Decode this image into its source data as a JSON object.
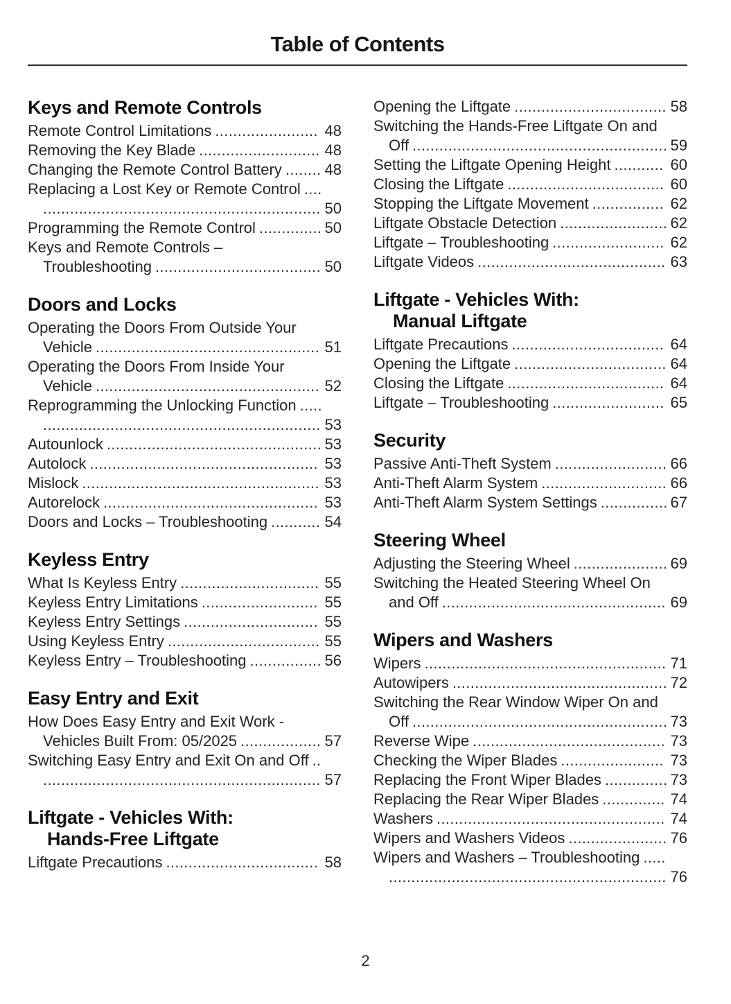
{
  "page": {
    "title": "Table of Contents",
    "page_number": "2"
  },
  "colors": {
    "background": "#ffffff",
    "text": "#242424",
    "heading": "#121212",
    "rule": "#2e2c2d"
  },
  "columns": [
    {
      "blocks": [
        {
          "heading": "Keys and Remote Controls",
          "entries": [
            {
              "label": "Remote Control Limitations",
              "page": "48"
            },
            {
              "label": "Removing the Key Blade",
              "page": "48"
            },
            {
              "label": "Changing the Remote Control Battery",
              "page": "48"
            },
            {
              "label": "Replacing a Lost Key or Remote Control",
              "page": "50"
            },
            {
              "label": "Programming the Remote Control",
              "page": "50"
            },
            {
              "label": "Keys and Remote Controls – Troubleshooting",
              "page": "50"
            }
          ]
        },
        {
          "heading": "Doors and Locks",
          "entries": [
            {
              "label": "Operating the Doors From Outside Your Vehicle",
              "page": "51"
            },
            {
              "label": "Operating the Doors From Inside Your Vehicle",
              "page": "52"
            },
            {
              "label": "Reprogramming the Unlocking Function",
              "page": "53"
            },
            {
              "label": "Autounlock",
              "page": "53"
            },
            {
              "label": "Autolock",
              "page": "53"
            },
            {
              "label": "Mislock",
              "page": "53"
            },
            {
              "label": "Autorelock",
              "page": "53"
            },
            {
              "label": "Doors and Locks – Troubleshooting",
              "page": "54"
            }
          ]
        },
        {
          "heading": "Keyless Entry",
          "entries": [
            {
              "label": "What Is Keyless Entry",
              "page": "55"
            },
            {
              "label": "Keyless Entry Limitations",
              "page": "55"
            },
            {
              "label": "Keyless Entry Settings",
              "page": "55"
            },
            {
              "label": "Using Keyless Entry",
              "page": "55"
            },
            {
              "label": "Keyless Entry – Troubleshooting",
              "page": "56"
            }
          ]
        },
        {
          "heading": "Easy Entry and Exit",
          "entries": [
            {
              "label": "How Does Easy Entry and Exit Work - Vehicles Built From: 05/2025",
              "page": "57"
            },
            {
              "label": "Switching Easy Entry and Exit On and Off",
              "page": "57"
            }
          ]
        },
        {
          "heading": "Liftgate - Vehicles With:\nHands-Free Liftgate",
          "entries": [
            {
              "label": "Liftgate Precautions",
              "page": "58"
            }
          ]
        }
      ]
    },
    {
      "blocks": [
        {
          "heading": null,
          "entries": [
            {
              "label": "Opening the Liftgate",
              "page": "58"
            },
            {
              "label": "Switching the Hands-Free Liftgate On and Off",
              "page": "59"
            },
            {
              "label": "Setting the Liftgate Opening Height",
              "page": "60"
            },
            {
              "label": "Closing the Liftgate",
              "page": "60"
            },
            {
              "label": "Stopping the Liftgate Movement",
              "page": "62"
            },
            {
              "label": "Liftgate Obstacle Detection",
              "page": "62"
            },
            {
              "label": "Liftgate – Troubleshooting",
              "page": "62"
            },
            {
              "label": "Liftgate Videos",
              "page": "63"
            }
          ]
        },
        {
          "heading": "Liftgate - Vehicles With:\nManual Liftgate",
          "entries": [
            {
              "label": "Liftgate Precautions",
              "page": "64"
            },
            {
              "label": "Opening the Liftgate",
              "page": "64"
            },
            {
              "label": "Closing the Liftgate",
              "page": "64"
            },
            {
              "label": "Liftgate – Troubleshooting",
              "page": "65"
            }
          ]
        },
        {
          "heading": "Security",
          "entries": [
            {
              "label": "Passive Anti-Theft System",
              "page": "66"
            },
            {
              "label": "Anti-Theft Alarm System",
              "page": "66"
            },
            {
              "label": "Anti-Theft Alarm System Settings",
              "page": "67"
            }
          ]
        },
        {
          "heading": "Steering Wheel",
          "entries": [
            {
              "label": "Adjusting the Steering Wheel",
              "page": "69"
            },
            {
              "label": "Switching the Heated Steering Wheel On and Off",
              "page": "69"
            }
          ]
        },
        {
          "heading": "Wipers and Washers",
          "entries": [
            {
              "label": "Wipers",
              "page": "71"
            },
            {
              "label": "Autowipers",
              "page": "72"
            },
            {
              "label": "Switching the Rear Window Wiper On and Off",
              "page": "73"
            },
            {
              "label": "Reverse Wipe",
              "page": "73"
            },
            {
              "label": "Checking the Wiper Blades",
              "page": "73"
            },
            {
              "label": "Replacing the Front Wiper Blades",
              "page": "73"
            },
            {
              "label": "Replacing the Rear Wiper Blades",
              "page": "74"
            },
            {
              "label": "Washers",
              "page": "74"
            },
            {
              "label": "Wipers and Washers Videos",
              "page": "76"
            },
            {
              "label": "Wipers and Washers – Troubleshooting",
              "page": "76"
            }
          ]
        }
      ]
    }
  ]
}
